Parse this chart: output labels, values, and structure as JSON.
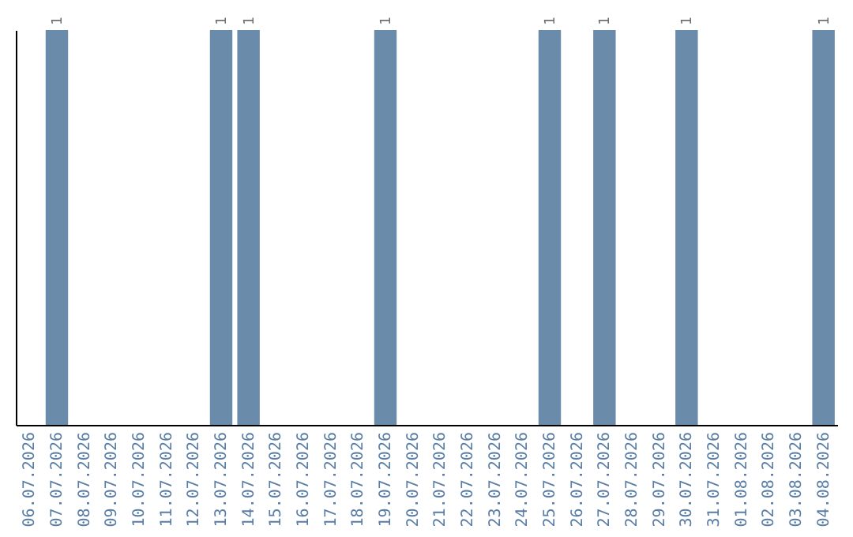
{
  "chart_data": {
    "type": "bar",
    "categories": [
      "06.07.2026",
      "07.07.2026",
      "08.07.2026",
      "09.07.2026",
      "10.07.2026",
      "11.07.2026",
      "12.07.2026",
      "13.07.2026",
      "14.07.2026",
      "15.07.2026",
      "16.07.2026",
      "17.07.2026",
      "18.07.2026",
      "19.07.2026",
      "20.07.2026",
      "21.07.2026",
      "22.07.2026",
      "23.07.2026",
      "24.07.2026",
      "25.07.2026",
      "26.07.2026",
      "27.07.2026",
      "28.07.2026",
      "29.07.2026",
      "30.07.2026",
      "31.07.2026",
      "01.08.2026",
      "02.08.2026",
      "03.08.2026",
      "04.08.2026"
    ],
    "values": [
      null,
      1,
      null,
      null,
      null,
      null,
      null,
      1,
      1,
      null,
      null,
      null,
      null,
      1,
      null,
      null,
      null,
      null,
      null,
      1,
      null,
      1,
      null,
      null,
      1,
      null,
      null,
      null,
      null,
      1
    ],
    "color": "#6a8caa",
    "data_labels": true
  }
}
